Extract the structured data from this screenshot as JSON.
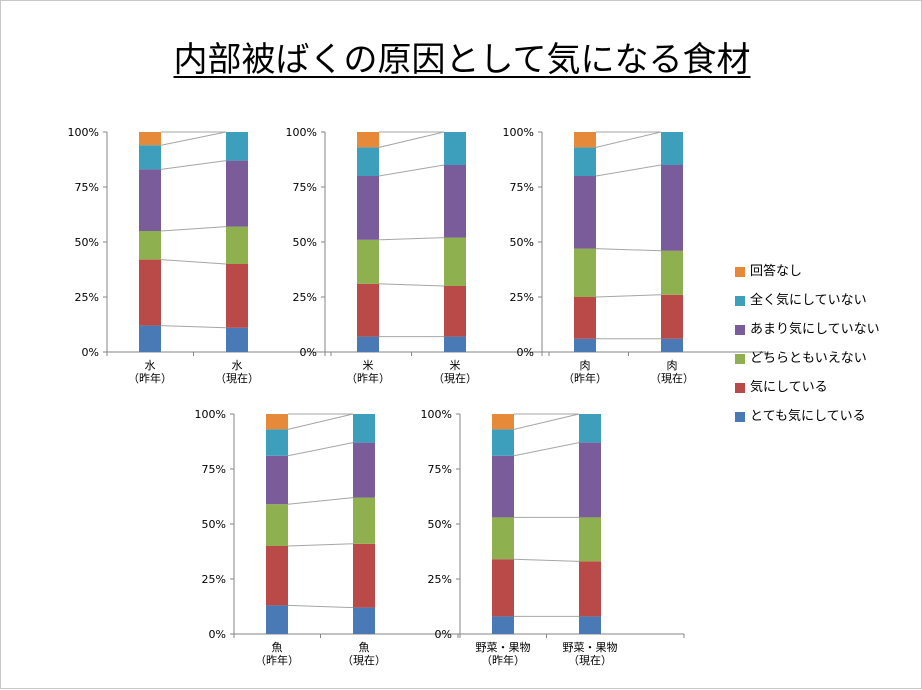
{
  "title": "内部被ばくの原因として気になる食材",
  "colors": {
    "とても気にしている": "#4a7ab5",
    "気にしている": "#b94a48",
    "どちらともいえない": "#8fb04e",
    "あまり気にしていない": "#7b5c9a",
    "全く気にしていない": "#3e9fbc",
    "回答なし": "#e68a3a"
  },
  "legend": [
    {
      "label": "回答なし",
      "color": "#e68a3a"
    },
    {
      "label": "全く気にしていない",
      "color": "#3e9fbc"
    },
    {
      "label": "あまり気にしていない",
      "color": "#7b5c9a"
    },
    {
      "label": "どちらともいえない",
      "color": "#8fb04e"
    },
    {
      "label": "気にしている",
      "color": "#b94a48"
    },
    {
      "label": "とても気にしている",
      "color": "#4a7ab5"
    }
  ],
  "chart_data": [
    {
      "type": "bar",
      "stacked": "percent",
      "ylim": [
        0,
        100
      ],
      "yticks": [
        "0%",
        "25%",
        "50%",
        "75%",
        "100%"
      ],
      "categories": [
        [
          "水",
          "（昨年）"
        ],
        [
          "水",
          "（現在）"
        ]
      ],
      "series": [
        {
          "name": "とても気にしている",
          "values": [
            12,
            11
          ]
        },
        {
          "name": "気にしている",
          "values": [
            30,
            29
          ]
        },
        {
          "name": "どちらともいえない",
          "values": [
            13,
            17
          ]
        },
        {
          "name": "あまり気にしていない",
          "values": [
            28,
            30
          ]
        },
        {
          "name": "全く気にしていない",
          "values": [
            11,
            13
          ]
        },
        {
          "name": "回答なし",
          "values": [
            6,
            0
          ]
        }
      ]
    },
    {
      "type": "bar",
      "stacked": "percent",
      "ylim": [
        0,
        100
      ],
      "yticks": [
        "0%",
        "25%",
        "50%",
        "75%",
        "100%"
      ],
      "categories": [
        [
          "米",
          "（昨年）"
        ],
        [
          "米",
          "（現在）"
        ]
      ],
      "series": [
        {
          "name": "とても気にしている",
          "values": [
            7,
            7
          ]
        },
        {
          "name": "気にしている",
          "values": [
            24,
            23
          ]
        },
        {
          "name": "どちらともいえない",
          "values": [
            20,
            22
          ]
        },
        {
          "name": "あまり気にしていない",
          "values": [
            29,
            33
          ]
        },
        {
          "name": "全く気にしていない",
          "values": [
            13,
            15
          ]
        },
        {
          "name": "回答なし",
          "values": [
            7,
            0
          ]
        }
      ]
    },
    {
      "type": "bar",
      "stacked": "percent",
      "ylim": [
        0,
        100
      ],
      "yticks": [
        "0%",
        "25%",
        "50%",
        "75%",
        "100%"
      ],
      "categories": [
        [
          "肉",
          "（昨年）"
        ],
        [
          "肉",
          "（現在）"
        ]
      ],
      "series": [
        {
          "name": "とても気にしている",
          "values": [
            6,
            6
          ]
        },
        {
          "name": "気にしている",
          "values": [
            19,
            20
          ]
        },
        {
          "name": "どちらともいえない",
          "values": [
            22,
            20
          ]
        },
        {
          "name": "あまり気にしていない",
          "values": [
            33,
            39
          ]
        },
        {
          "name": "全く気にしていない",
          "values": [
            13,
            15
          ]
        },
        {
          "name": "回答なし",
          "values": [
            7,
            0
          ]
        }
      ]
    },
    {
      "type": "bar",
      "stacked": "percent",
      "ylim": [
        0,
        100
      ],
      "yticks": [
        "0%",
        "25%",
        "50%",
        "75%",
        "100%"
      ],
      "categories": [
        [
          "魚",
          "（昨年）"
        ],
        [
          "魚",
          "（現在）"
        ]
      ],
      "series": [
        {
          "name": "とても気にしている",
          "values": [
            13,
            12
          ]
        },
        {
          "name": "気にしている",
          "values": [
            27,
            29
          ]
        },
        {
          "name": "どちらともいえない",
          "values": [
            19,
            21
          ]
        },
        {
          "name": "あまり気にしていない",
          "values": [
            22,
            25
          ]
        },
        {
          "name": "全く気にしていない",
          "values": [
            12,
            13
          ]
        },
        {
          "name": "回答なし",
          "values": [
            7,
            0
          ]
        }
      ]
    },
    {
      "type": "bar",
      "stacked": "percent",
      "ylim": [
        0,
        100
      ],
      "yticks": [
        "0%",
        "25%",
        "50%",
        "75%",
        "100%"
      ],
      "categories": [
        [
          "野菜・果物",
          "（昨年）"
        ],
        [
          "野菜・果物",
          "（現在）"
        ]
      ],
      "series": [
        {
          "name": "とても気にしている",
          "values": [
            8,
            8
          ]
        },
        {
          "name": "気にしている",
          "values": [
            26,
            25
          ]
        },
        {
          "name": "どちらともいえない",
          "values": [
            19,
            20
          ]
        },
        {
          "name": "あまり気にしていない",
          "values": [
            28,
            34
          ]
        },
        {
          "name": "全く気にしていない",
          "values": [
            12,
            13
          ]
        },
        {
          "name": "回答なし",
          "values": [
            7,
            0
          ]
        }
      ]
    }
  ]
}
